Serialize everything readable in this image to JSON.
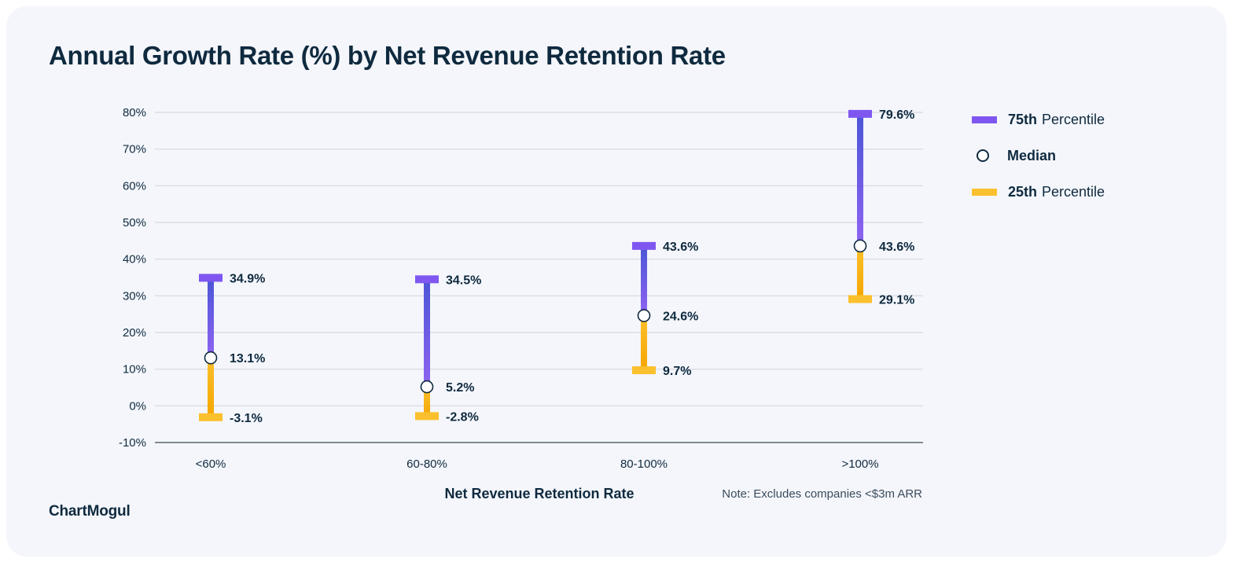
{
  "title": "Annual Growth Rate (%) by Net Revenue Retention Rate",
  "brand": "ChartMogul",
  "note": "Note: Excludes companies <$3m ARR",
  "colors": {
    "p75": "#7f57f0",
    "p75_dark": "#4a56d6",
    "p25": "#fbc02d",
    "p25_dark": "#f5a600",
    "text": "#0f2a3f",
    "grid": "#d4d8e0"
  },
  "legend": {
    "p75_bold": "75th",
    "p75_rest": "Percentile",
    "median": "Median",
    "p25_bold": "25th",
    "p25_rest": "Percentile"
  },
  "chart_data": {
    "type": "range",
    "title": "Annual Growth Rate (%) by Net Revenue Retention Rate",
    "xlabel": "Net Revenue Retention Rate",
    "ylabel": "",
    "ylim": [
      -10,
      80
    ],
    "yticks": [
      -10,
      0,
      10,
      20,
      30,
      40,
      50,
      60,
      70,
      80
    ],
    "ytick_labels": [
      "-10%",
      "0%",
      "10%",
      "20%",
      "30%",
      "40%",
      "50%",
      "60%",
      "70%",
      "80%"
    ],
    "grid": true,
    "legend_position": "right",
    "categories": [
      "<60%",
      "60-80%",
      "80-100%",
      ">100%"
    ],
    "series": [
      {
        "name": "75th Percentile",
        "values": [
          34.9,
          34.5,
          43.6,
          79.6
        ],
        "labels": [
          "34.9%",
          "34.5%",
          "43.6%",
          "79.6%"
        ]
      },
      {
        "name": "Median",
        "values": [
          13.1,
          5.2,
          24.6,
          43.6
        ],
        "labels": [
          "13.1%",
          "5.2%",
          "24.6%",
          "43.6%"
        ]
      },
      {
        "name": "25th Percentile",
        "values": [
          -3.1,
          -2.8,
          9.7,
          29.1
        ],
        "labels": [
          "-3.1%",
          "-2.8%",
          "9.7%",
          "29.1%"
        ]
      }
    ]
  }
}
